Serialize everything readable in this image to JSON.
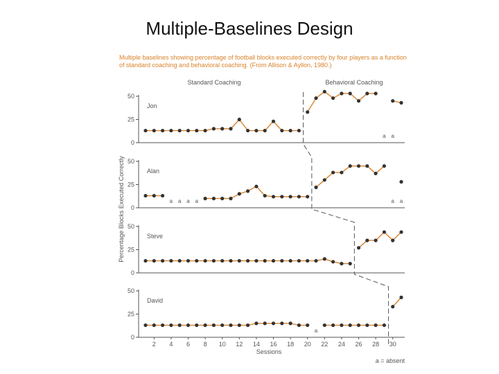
{
  "slide_title": "Multiple-Baselines Design",
  "caption": "Multiple baselines showing percentage of football blocks executed correctly by four players as a function of standard coaching and behavioral coaching. (From Allison & Ayllon, 1980.)",
  "chart_data": {
    "type": "line",
    "phase_labels": [
      "Standard Coaching",
      "Behavioral Coaching"
    ],
    "ylabel": "Percentage Blocks Executed Correctly",
    "xlabel": "Sessions",
    "x_ticks": [
      2,
      4,
      6,
      8,
      10,
      12,
      14,
      16,
      18,
      20,
      22,
      24,
      26,
      28,
      30
    ],
    "xlim": [
      1,
      31
    ],
    "ylim": [
      0,
      50
    ],
    "y_ticks": [
      0,
      25,
      50
    ],
    "footnote": "a = absent",
    "absent_marker": "a",
    "colors": {
      "line": "#d9822b",
      "point": "#333333",
      "axis": "#555555",
      "text": "#555555",
      "phase_line": "#555555"
    },
    "panels": [
      {
        "name": "Jon",
        "phase_change_after": 19.5,
        "segments": [
          {
            "x": [
              1,
              2,
              3,
              4,
              5,
              6,
              7,
              8,
              9,
              10,
              11,
              12,
              13,
              14,
              15,
              16,
              17,
              18,
              19
            ],
            "y": [
              13,
              13,
              13,
              13,
              13,
              13,
              13,
              13,
              15,
              15,
              15,
              25,
              13,
              13,
              13,
              23,
              13,
              13,
              13
            ]
          },
          {
            "x": [
              20,
              21,
              22,
              23,
              24,
              25,
              26,
              27,
              28
            ],
            "y": [
              33,
              48,
              55,
              48,
              53,
              53,
              45,
              53,
              53
            ]
          },
          {
            "x": [
              30,
              31
            ],
            "y": [
              45,
              43
            ]
          }
        ],
        "absent": [
          29,
          30
        ]
      },
      {
        "name": "Alan",
        "phase_change_after": 20.5,
        "segments": [
          {
            "x": [
              1,
              2,
              3
            ],
            "y": [
              13,
              13,
              13
            ]
          },
          {
            "x": [
              8,
              9,
              10,
              11,
              12,
              13,
              14,
              15,
              16,
              17,
              18,
              19,
              20
            ],
            "y": [
              10,
              10,
              10,
              10,
              15,
              18,
              23,
              13,
              12,
              12,
              12,
              12,
              12
            ]
          },
          {
            "x": [
              21,
              22,
              23,
              24,
              25,
              26,
              27,
              28,
              29
            ],
            "y": [
              22,
              30,
              38,
              38,
              45,
              45,
              45,
              37,
              45
            ]
          },
          {
            "x": [
              31
            ],
            "y": [
              28
            ]
          }
        ],
        "absent": [
          4,
          5,
          6,
          7,
          30,
          31
        ]
      },
      {
        "name": "Steve",
        "phase_change_after": 25.5,
        "segments": [
          {
            "x": [
              1,
              2,
              3,
              4,
              5,
              6,
              7,
              8,
              9,
              10,
              11,
              12,
              13,
              14,
              15,
              16,
              17,
              18,
              19,
              20,
              21,
              22,
              23,
              24,
              25
            ],
            "y": [
              13,
              13,
              13,
              13,
              13,
              13,
              13,
              13,
              13,
              13,
              13,
              13,
              13,
              13,
              13,
              13,
              13,
              13,
              13,
              13,
              13,
              15,
              12,
              10,
              10
            ]
          },
          {
            "x": [
              26,
              27,
              28,
              29,
              30,
              31
            ],
            "y": [
              27,
              35,
              35,
              44,
              35,
              44
            ]
          }
        ],
        "absent": []
      },
      {
        "name": "David",
        "phase_change_after": 29.5,
        "segments": [
          {
            "x": [
              1,
              2,
              3,
              4,
              5,
              6,
              7,
              8,
              9,
              10,
              11,
              12,
              13,
              14,
              15,
              16,
              17,
              18,
              19,
              20
            ],
            "y": [
              13,
              13,
              13,
              13,
              13,
              13,
              13,
              13,
              13,
              13,
              13,
              13,
              13,
              15,
              15,
              15,
              15,
              15,
              13,
              13
            ]
          },
          {
            "x": [
              22,
              23,
              24,
              25,
              26,
              27,
              28,
              29
            ],
            "y": [
              13,
              13,
              13,
              13,
              13,
              13,
              13,
              13
            ]
          },
          {
            "x": [
              30,
              31
            ],
            "y": [
              33,
              43
            ]
          }
        ],
        "absent": [
          21
        ]
      }
    ]
  }
}
